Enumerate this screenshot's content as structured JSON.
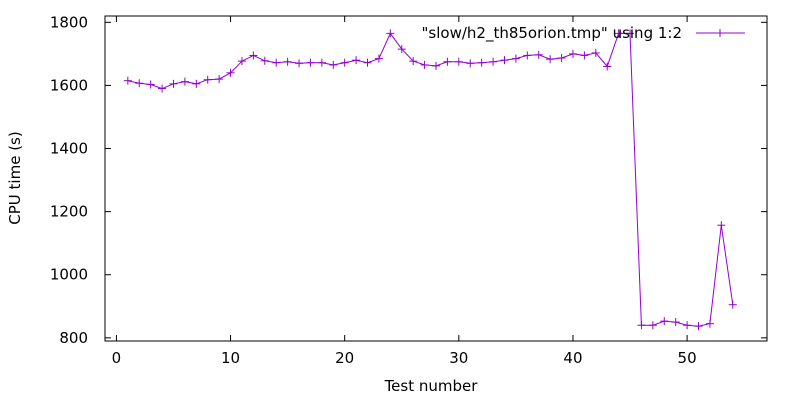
{
  "chart_data": {
    "type": "line",
    "title": "",
    "xlabel": "Test number",
    "ylabel": "CPU time (s)",
    "xlim": [
      -1,
      57
    ],
    "ylim": [
      790,
      1820
    ],
    "xticks": [
      0,
      10,
      20,
      30,
      40,
      50
    ],
    "yticks": [
      800,
      1000,
      1200,
      1400,
      1600,
      1800
    ],
    "grid": false,
    "legend_position": "top-right",
    "series": [
      {
        "name": "\"slow/h2_th85orion.tmp\" using 1:2",
        "color": "#9400d3",
        "marker": "plus",
        "x": [
          1,
          2,
          3,
          4,
          5,
          6,
          7,
          8,
          9,
          10,
          11,
          12,
          13,
          14,
          15,
          16,
          17,
          18,
          19,
          20,
          21,
          22,
          23,
          24,
          25,
          26,
          27,
          28,
          29,
          30,
          31,
          32,
          33,
          34,
          35,
          36,
          37,
          38,
          39,
          40,
          41,
          42,
          43,
          44,
          45,
          46,
          47,
          48,
          49,
          50,
          51,
          52,
          53,
          54
        ],
        "y": [
          1615,
          1607,
          1603,
          1590,
          1605,
          1612,
          1605,
          1618,
          1620,
          1640,
          1677,
          1695,
          1678,
          1672,
          1675,
          1670,
          1672,
          1672,
          1665,
          1672,
          1680,
          1672,
          1685,
          1765,
          1715,
          1677,
          1665,
          1662,
          1675,
          1675,
          1670,
          1672,
          1675,
          1680,
          1685,
          1695,
          1697,
          1683,
          1687,
          1700,
          1695,
          1703,
          1660,
          1765,
          1765,
          840,
          840,
          853,
          850,
          840,
          837,
          845,
          1157,
          905
        ]
      }
    ]
  }
}
